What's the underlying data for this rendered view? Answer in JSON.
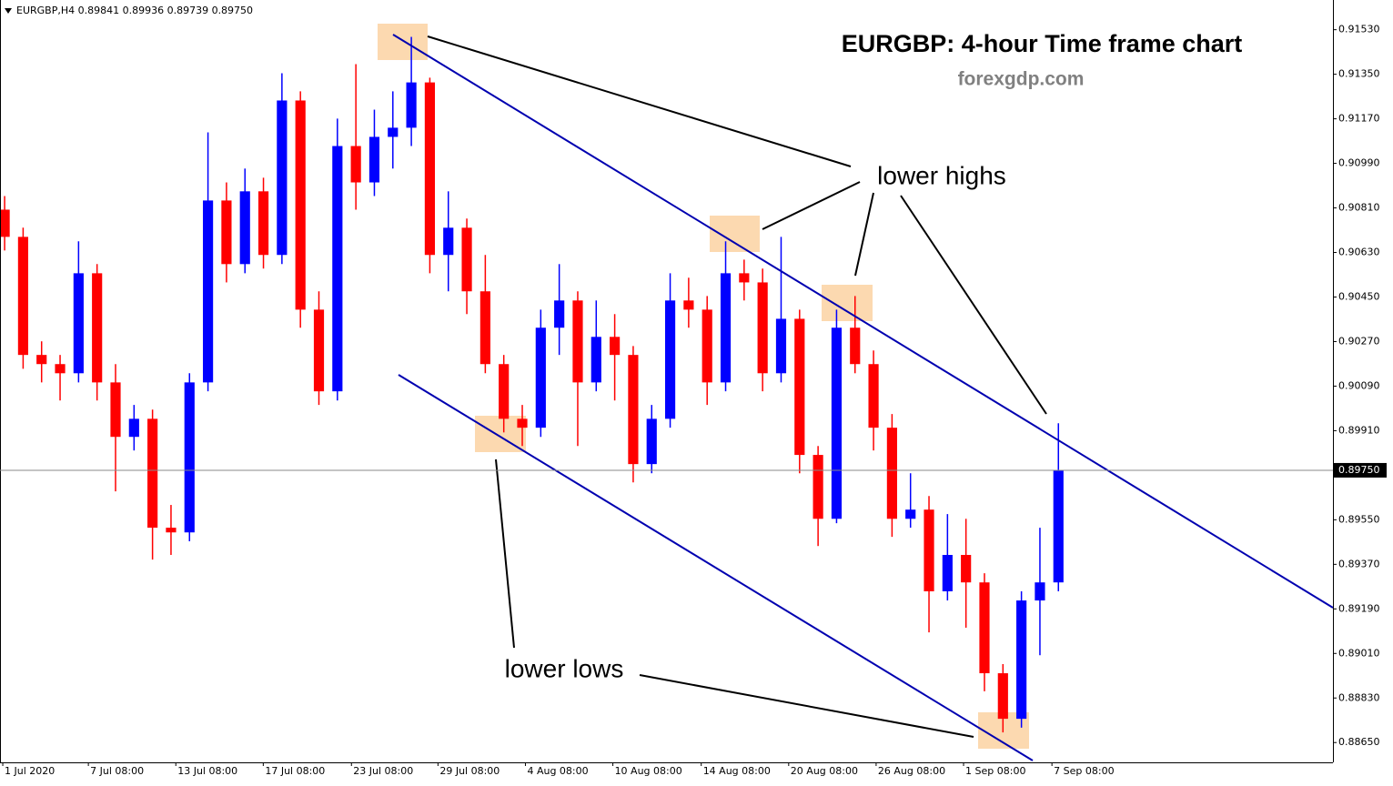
{
  "chart_data": {
    "type": "candlestick",
    "header": "EURGBP,H4  0.89841 0.89936 0.89739 0.89750",
    "title": "EURGBP: 4-hour Time frame chart",
    "subtitle": "forexgdp.com",
    "annotations": [
      "lower highs",
      "lower lows"
    ],
    "x": [
      0,
      1,
      2,
      3,
      4,
      5,
      6,
      7,
      8,
      9,
      10,
      11,
      12,
      13,
      14,
      15,
      16,
      17,
      18,
      19,
      20,
      21,
      22,
      23,
      24,
      25,
      26,
      27,
      28,
      29,
      30,
      31,
      32,
      33,
      34,
      35,
      36,
      37,
      38,
      39,
      40,
      41,
      42,
      43,
      44,
      45,
      46,
      47,
      48,
      49,
      50,
      51,
      52,
      53,
      54,
      55,
      56,
      57
    ],
    "open": [
      0.90803,
      0.90693,
      0.90216,
      0.90179,
      0.90142,
      0.90546,
      0.90105,
      0.89885,
      0.89958,
      0.89518,
      0.89499,
      0.90105,
      0.9084,
      0.90583,
      0.90877,
      0.9062,
      0.91244,
      0.90399,
      0.90069,
      0.9106,
      0.90913,
      0.91097,
      0.91134,
      0.91317,
      0.9062,
      0.9073,
      0.90473,
      0.90179,
      0.89958,
      0.89922,
      0.90326,
      0.90436,
      0.90105,
      0.90289,
      0.90216,
      0.89775,
      0.89958,
      0.90436,
      0.90399,
      0.90105,
      0.90546,
      0.90509,
      0.90142,
      0.90362,
      0.89812,
      0.89554,
      0.90326,
      0.90179,
      0.89922,
      0.89554,
      0.89591,
      0.89261,
      0.89408,
      0.89297,
      0.8893,
      0.88746,
      0.89224,
      0.89297
    ],
    "high": [
      0.90858,
      0.9073,
      0.90271,
      0.90216,
      0.90675,
      0.90583,
      0.90179,
      0.90014,
      0.89995,
      0.8961,
      0.90142,
      0.91115,
      0.90913,
      0.90969,
      0.90932,
      0.91354,
      0.91281,
      0.90473,
      0.91171,
      0.91391,
      0.91207,
      0.91281,
      0.91501,
      0.91336,
      0.90877,
      0.90767,
      0.9062,
      0.90216,
      0.90014,
      0.90399,
      0.90583,
      0.90473,
      0.90436,
      0.90381,
      0.90252,
      0.90014,
      0.90546,
      0.90528,
      0.90454,
      0.90675,
      0.90601,
      0.90565,
      0.90693,
      0.90399,
      0.89848,
      0.90399,
      0.90454,
      0.90234,
      0.89977,
      0.89738,
      0.89646,
      0.89573,
      0.89554,
      0.89334,
      0.88967,
      0.89261,
      0.89518,
      0.8994
    ],
    "low": [
      0.90638,
      0.9016,
      0.90105,
      0.90032,
      0.90105,
      0.90032,
      0.89665,
      0.8983,
      0.89389,
      0.89408,
      0.89463,
      0.90069,
      0.90509,
      0.90546,
      0.90565,
      0.90583,
      0.90326,
      0.90014,
      0.90032,
      0.90803,
      0.90858,
      0.90969,
      0.9106,
      0.90546,
      0.90473,
      0.90381,
      0.90142,
      0.89903,
      0.89848,
      0.89885,
      0.90216,
      0.89848,
      0.90069,
      0.90032,
      0.89701,
      0.89738,
      0.89922,
      0.90326,
      0.90014,
      0.90069,
      0.90436,
      0.90069,
      0.90105,
      0.89738,
      0.89444,
      0.89536,
      0.90142,
      0.8983,
      0.89481,
      0.89518,
      0.89095,
      0.89224,
      0.89114,
      0.88857,
      0.88691,
      0.8871,
      0.89003,
      0.89261
    ],
    "close": [
      0.90693,
      0.90216,
      0.90179,
      0.90142,
      0.90546,
      0.90105,
      0.89885,
      0.89958,
      0.89518,
      0.89499,
      0.90105,
      0.9084,
      0.90583,
      0.90877,
      0.9062,
      0.91244,
      0.90399,
      0.90069,
      0.9106,
      0.90913,
      0.91097,
      0.91134,
      0.91317,
      0.9062,
      0.9073,
      0.90473,
      0.90179,
      0.89958,
      0.89922,
      0.90326,
      0.90436,
      0.90105,
      0.90289,
      0.90216,
      0.89775,
      0.89958,
      0.90436,
      0.90399,
      0.90105,
      0.90546,
      0.90509,
      0.90142,
      0.90362,
      0.89812,
      0.89554,
      0.90326,
      0.90179,
      0.89922,
      0.89554,
      0.89591,
      0.89261,
      0.89408,
      0.89297,
      0.8893,
      0.88746,
      0.89224,
      0.89297,
      0.8975
    ],
    "up_color": "#0000ff",
    "down_color": "#ff0000",
    "xlim": [
      -0.25,
      71.85
    ],
    "xticks": [
      {
        "value": -0.1,
        "label": "1 Jul 2020"
      },
      {
        "value": 4.53,
        "label": "7 Jul 08:00"
      },
      {
        "value": 9.26,
        "label": "13 Jul 08:00"
      },
      {
        "value": 13.99,
        "label": "17 Jul 08:00"
      },
      {
        "value": 18.76,
        "label": "23 Jul 08:00"
      },
      {
        "value": 23.44,
        "label": "29 Jul 08:00"
      },
      {
        "value": 28.17,
        "label": "4 Aug 08:00"
      },
      {
        "value": 32.9,
        "label": "10 Aug 08:00"
      },
      {
        "value": 37.68,
        "label": "14 Aug 08:00"
      },
      {
        "value": 42.41,
        "label": "20 Aug 08:00"
      },
      {
        "value": 47.14,
        "label": "26 Aug 08:00"
      },
      {
        "value": 51.87,
        "label": "1 Sep 08:00"
      },
      {
        "value": 56.65,
        "label": "7 Sep 08:00"
      }
    ],
    "ylim": [
      0.8857,
      0.9165
    ],
    "yticks": [
      {
        "value": 0.9153,
        "label": "0.91530"
      },
      {
        "value": 0.9135,
        "label": "0.91350"
      },
      {
        "value": 0.9117,
        "label": "0.91170"
      },
      {
        "value": 0.9099,
        "label": "0.90990"
      },
      {
        "value": 0.9081,
        "label": "0.90810"
      },
      {
        "value": 0.9063,
        "label": "0.90630"
      },
      {
        "value": 0.9045,
        "label": "0.90450"
      },
      {
        "value": 0.9027,
        "label": "0.90270"
      },
      {
        "value": 0.9009,
        "label": "0.90090"
      },
      {
        "value": 0.8991,
        "label": "0.89910"
      },
      {
        "value": 0.8955,
        "label": "0.89550"
      },
      {
        "value": 0.8937,
        "label": "0.89370"
      },
      {
        "value": 0.8919,
        "label": "0.89190"
      },
      {
        "value": 0.8901,
        "label": "0.89010"
      },
      {
        "value": 0.8883,
        "label": "0.88830"
      },
      {
        "value": 0.8865,
        "label": "0.88650"
      }
    ],
    "current_price": {
      "value": 0.8975,
      "label": "0.89750"
    }
  }
}
